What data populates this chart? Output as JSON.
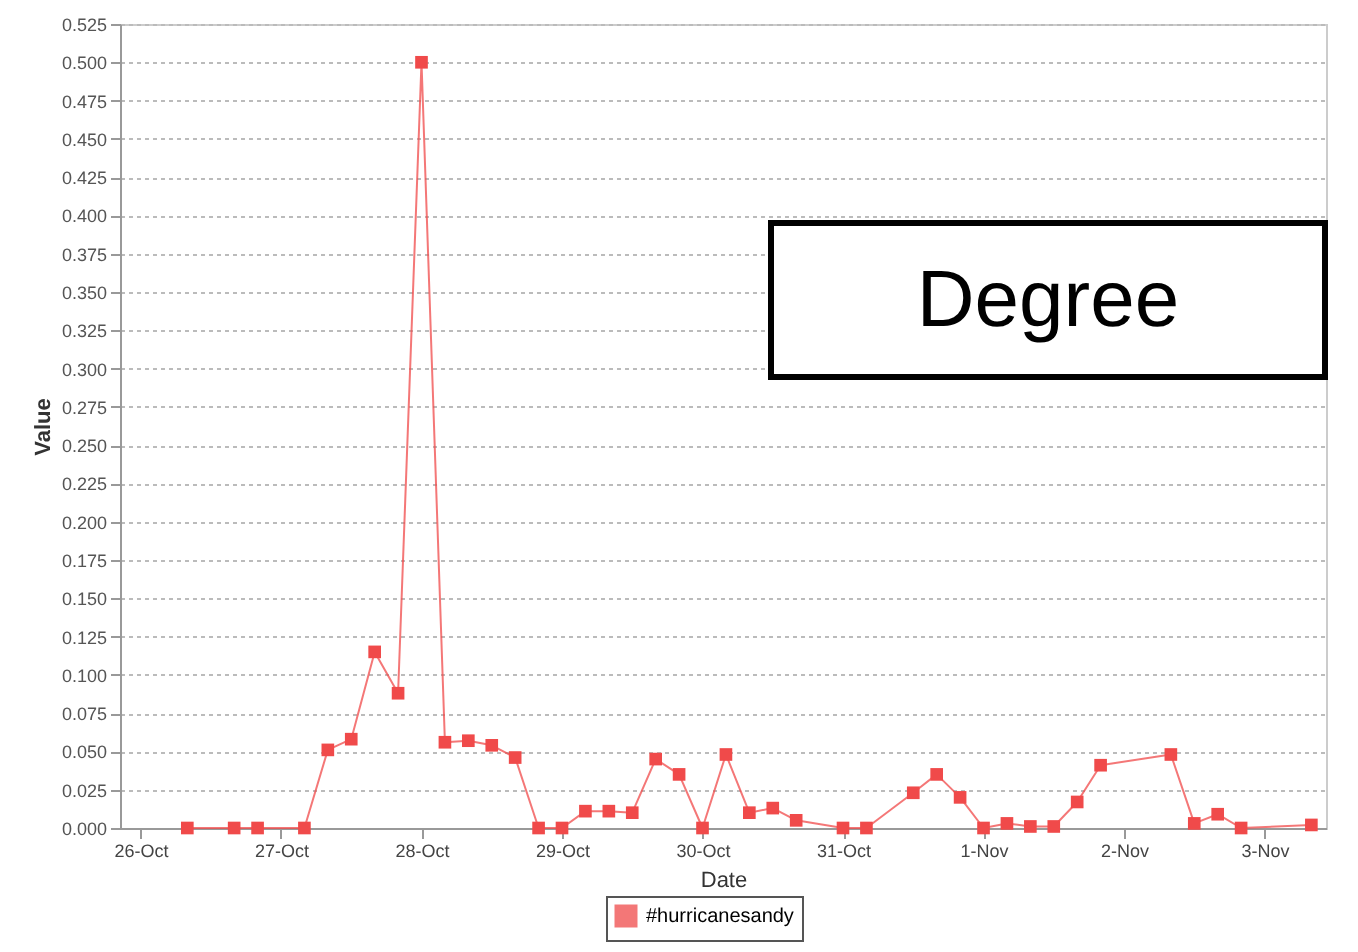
{
  "chart_data": {
    "type": "line",
    "xlabel": "Date",
    "ylabel": "Value",
    "annotations": [
      "Degree"
    ],
    "x": [
      "--10-26T08:00",
      "--10-26T16:00",
      "--10-26T20:00",
      "--10-27T04:00",
      "--10-27T08:00",
      "--10-27T12:00",
      "--10-27T16:00",
      "--10-27T20:00",
      "--10-28T00:00",
      "--10-28T04:00",
      "--10-28T08:00",
      "--10-28T12:00",
      "--10-28T16:00",
      "--10-28T20:00",
      "--10-29T00:00",
      "--10-29T04:00",
      "--10-29T08:00",
      "--10-29T12:00",
      "--10-29T16:00",
      "--10-29T20:00",
      "--10-30T00:00",
      "--10-30T04:00",
      "--10-30T08:00",
      "--10-30T12:00",
      "--10-30T16:00",
      "--10-31T00:00",
      "--10-31T04:00",
      "--10-31T12:00",
      "--10-31T16:00",
      "--10-31T20:00",
      "--11-01T00:00",
      "--11-01T04:00",
      "--11-01T08:00",
      "--11-01T12:00",
      "--11-01T16:00",
      "--11-01T20:00",
      "--11-02T08:00",
      "--11-02T12:00",
      "--11-02T16:00",
      "--11-02T20:00",
      "--11-03T08:00"
    ],
    "series": [
      {
        "name": "#hurricanesandy",
        "color": "#f04a4a",
        "values": [
          0,
          0,
          0,
          0,
          0.051,
          0.058,
          0.115,
          0.088,
          0.5,
          0.056,
          0.057,
          0.054,
          0.046,
          0,
          0,
          0.011,
          0.011,
          0.01,
          0.045,
          0.035,
          0,
          0.048,
          0.01,
          0.013,
          0.005,
          0,
          0,
          0.023,
          0.035,
          0.02,
          0,
          0.003,
          0.001,
          0.001,
          0.017,
          0.041,
          0.048,
          0.003,
          0.009,
          0,
          0.002
        ]
      }
    ],
    "xlim": [
      "--10-25T20:30",
      "--11-03T10:30"
    ],
    "xticks": [
      {
        "value": "--10-26",
        "label": "26-Oct"
      },
      {
        "value": "--10-27",
        "label": "27-Oct"
      },
      {
        "value": "--10-28",
        "label": "28-Oct"
      },
      {
        "value": "--10-29",
        "label": "29-Oct"
      },
      {
        "value": "--10-30",
        "label": "30-Oct"
      },
      {
        "value": "--10-31",
        "label": "31-Oct"
      },
      {
        "value": "--11-01",
        "label": "1-Nov"
      },
      {
        "value": "--11-02",
        "label": "2-Nov"
      },
      {
        "value": "--11-03",
        "label": "3-Nov"
      }
    ],
    "ylim": [
      0,
      0.525
    ],
    "yticks": [
      {
        "value": 0,
        "label": "0.000"
      },
      {
        "value": 0.025,
        "label": "0.025"
      },
      {
        "value": 0.05,
        "label": "0.050"
      },
      {
        "value": 0.075,
        "label": "0.075"
      },
      {
        "value": 0.1,
        "label": "0.100"
      },
      {
        "value": 0.125,
        "label": "0.125"
      },
      {
        "value": 0.15,
        "label": "0.150"
      },
      {
        "value": 0.175,
        "label": "0.175"
      },
      {
        "value": 0.2,
        "label": "0.200"
      },
      {
        "value": 0.225,
        "label": "0.225"
      },
      {
        "value": 0.25,
        "label": "0.250"
      },
      {
        "value": 0.275,
        "label": "0.275"
      },
      {
        "value": 0.3,
        "label": "0.300"
      },
      {
        "value": 0.325,
        "label": "0.325"
      },
      {
        "value": 0.35,
        "label": "0.350"
      },
      {
        "value": 0.375,
        "label": "0.375"
      },
      {
        "value": 0.4,
        "label": "0.400"
      },
      {
        "value": 0.425,
        "label": "0.425"
      },
      {
        "value": 0.45,
        "label": "0.450"
      },
      {
        "value": 0.475,
        "label": "0.475"
      },
      {
        "value": 0.5,
        "label": "0.500"
      },
      {
        "value": 0.525,
        "label": "0.525"
      }
    ],
    "grid": "y",
    "legend": "bottom",
    "marker": "square",
    "line_style": "solid"
  }
}
